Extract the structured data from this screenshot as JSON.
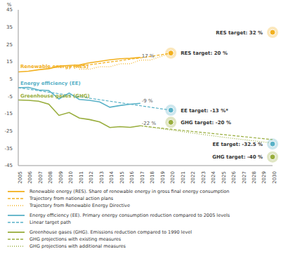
{
  "chart_data": {
    "type": "line",
    "y_label": "%",
    "xlim": [
      2005,
      2030
    ],
    "xticks": [
      2005,
      2006,
      2007,
      2008,
      2009,
      2010,
      2011,
      2012,
      2013,
      2014,
      2015,
      2016,
      2017,
      2018,
      2019,
      2020,
      2021,
      2022,
      2023,
      2024,
      2025,
      2026,
      2027,
      2028,
      2029,
      2030
    ],
    "ylim": [
      -45,
      45
    ],
    "yticks": [
      -45,
      -35,
      -25,
      -15,
      -5,
      5,
      15,
      25,
      35,
      45
    ],
    "grid": false,
    "legend": "bottom",
    "series": [
      {
        "name": "Renewable energy (RES). Share of renewable energy in gross final energy consumption",
        "color": "#f2b01e",
        "line_style": "solid",
        "x": [
          2005,
          2006,
          2007,
          2008,
          2009,
          2010,
          2011,
          2012,
          2013,
          2014,
          2015,
          2016,
          2017
        ],
        "values": [
          9.1,
          9.5,
          10.4,
          11.0,
          12.4,
          12.9,
          13.2,
          14.4,
          15.2,
          16.1,
          16.7,
          17.0,
          17.5
        ]
      },
      {
        "name": "Trajectory from national action plans",
        "color": "#f2b01e",
        "line_style": "dashed",
        "x": [
          2010,
          2011,
          2012,
          2013,
          2014,
          2015,
          2016,
          2017,
          2018,
          2019,
          2020
        ],
        "values": [
          12.0,
          12.5,
          13.3,
          14.0,
          14.9,
          15.6,
          16.5,
          17.2,
          18.1,
          19.0,
          20.0
        ]
      },
      {
        "name": "Trajectory from Renewable Energy Directive",
        "color": "#f2b01e",
        "line_style": "dotted",
        "x": [
          2011,
          2012,
          2013,
          2014,
          2015,
          2016,
          2017,
          2018,
          2019,
          2020
        ],
        "values": [
          10.7,
          10.7,
          12.1,
          12.1,
          13.8,
          13.8,
          16.0,
          16.0,
          18.0,
          20.0
        ]
      },
      {
        "name": "Energy efficiency (EE). Primary energy consumption reduction compared to 2005 levels",
        "color": "#58b1c7",
        "line_style": "solid",
        "x": [
          2005,
          2006,
          2007,
          2008,
          2009,
          2010,
          2011,
          2012,
          2013,
          2014,
          2015,
          2016,
          2017
        ],
        "values": [
          0,
          0.2,
          -1.3,
          -1.6,
          -6.5,
          -3.1,
          -6.8,
          -7.3,
          -8.2,
          -11.3,
          -10.3,
          -9.5,
          -9.0
        ]
      },
      {
        "name": "Linear target path",
        "color": "#58b1c7",
        "line_style": "dashed",
        "x": [
          2005,
          2020
        ],
        "values": [
          0,
          -13
        ]
      },
      {
        "name": "Greenhouse gases (GHG). Emissions reduction compared to 1990 level",
        "color": "#98ad3c",
        "line_style": "solid",
        "x": [
          2005,
          2006,
          2007,
          2008,
          2009,
          2010,
          2011,
          2012,
          2013,
          2014,
          2015,
          2016,
          2017
        ],
        "values": [
          -7.1,
          -7.3,
          -7.8,
          -9.5,
          -16.0,
          -14.3,
          -17.5,
          -18.4,
          -19.8,
          -23.0,
          -22.5,
          -22.9,
          -22.0
        ]
      },
      {
        "name": "GHG projections with existing measures",
        "color": "#98ad3c",
        "line_style": "dashed",
        "x": [
          2017,
          2020,
          2025,
          2030
        ],
        "values": [
          -22.0,
          -24.0,
          -27.0,
          -30.0
        ]
      },
      {
        "name": "GHG projections with additional measures",
        "color": "#98ad3c",
        "line_style": "dotted",
        "x": [
          2017,
          2020,
          2025,
          2030
        ],
        "values": [
          -22.0,
          -24.5,
          -28.5,
          -32.0
        ]
      }
    ],
    "series_labels": [
      {
        "text": "Renewable energy (RES)",
        "x": 2005.2,
        "y": 12.5,
        "color": "#f2b01e"
      },
      {
        "text": "Energy efficiency (EE)",
        "x": 2005.2,
        "y": 2.5,
        "color": "#58b1c7"
      },
      {
        "text": "Greenhouse gases (GHG)",
        "x": 2005.2,
        "y": -4.5,
        "color": "#98ad3c"
      }
    ],
    "annotations": [
      {
        "text": "17 %",
        "x": 2017,
        "y": 18.5,
        "color": "#555555"
      },
      {
        "text": "-9 %",
        "x": 2017,
        "y": -7.5,
        "color": "#555555"
      },
      {
        "text": "-22 %",
        "x": 2017,
        "y": -20.5,
        "color": "#555555"
      }
    ],
    "targets": [
      {
        "text": "RES target: 20 %",
        "x": 2020,
        "y": 20,
        "color": "#f2b01e"
      },
      {
        "text": "RES target: 32 %",
        "x": 2030,
        "y": 32,
        "color": "#f2b01e"
      },
      {
        "text": "EE target: -13 %*",
        "x": 2020,
        "y": -13,
        "color": "#58b1c7"
      },
      {
        "text": "EE target: -32.5 %",
        "x": 2030,
        "y": -32.5,
        "color": "#58b1c7"
      },
      {
        "text": "GHG target: -20 %",
        "x": 2020,
        "y": -20,
        "color": "#98ad3c"
      },
      {
        "text": "GHG target: -40 %",
        "x": 2030,
        "y": -40,
        "color": "#98ad3c"
      }
    ]
  }
}
